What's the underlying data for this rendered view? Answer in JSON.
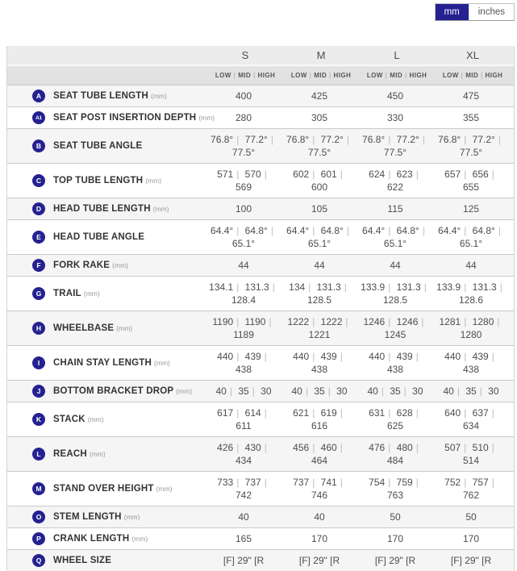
{
  "unit_toggle": {
    "mm_label": "mm",
    "inches_label": "inches",
    "active": "mm",
    "active_color": "#252191"
  },
  "table": {
    "sizes": [
      "S",
      "M",
      "L",
      "XL"
    ],
    "settings": [
      "LOW",
      "MID",
      "HIGH"
    ],
    "rows": [
      {
        "badge": "A",
        "label": "SEAT TUBE LENGTH",
        "unit": "(mm)",
        "values": [
          [
            "400"
          ],
          [
            "425"
          ],
          [
            "450"
          ],
          [
            "475"
          ]
        ]
      },
      {
        "badge": "A1",
        "label": "SEAT POST INSERTION DEPTH",
        "unit": "(mm)",
        "values": [
          [
            "280"
          ],
          [
            "305"
          ],
          [
            "330"
          ],
          [
            "355"
          ]
        ]
      },
      {
        "badge": "B",
        "label": "SEAT TUBE ANGLE",
        "unit": "",
        "values": [
          [
            "76.8°",
            "77.2°",
            "77.5°"
          ],
          [
            "76.8°",
            "77.2°",
            "77.5°"
          ],
          [
            "76.8°",
            "77.2°",
            "77.5°"
          ],
          [
            "76.8°",
            "77.2°",
            "77.5°"
          ]
        ]
      },
      {
        "badge": "C",
        "label": "TOP TUBE LENGTH",
        "unit": "(mm)",
        "values": [
          [
            "571",
            "570",
            "569"
          ],
          [
            "602",
            "601",
            "600"
          ],
          [
            "624",
            "623",
            "622"
          ],
          [
            "657",
            "656",
            "655"
          ]
        ]
      },
      {
        "badge": "D",
        "label": "HEAD TUBE LENGTH",
        "unit": "(mm)",
        "values": [
          [
            "100"
          ],
          [
            "105"
          ],
          [
            "115"
          ],
          [
            "125"
          ]
        ]
      },
      {
        "badge": "E",
        "label": "HEAD TUBE ANGLE",
        "unit": "",
        "values": [
          [
            "64.4°",
            "64.8°",
            "65.1°"
          ],
          [
            "64.4°",
            "64.8°",
            "65.1°"
          ],
          [
            "64.4°",
            "64.8°",
            "65.1°"
          ],
          [
            "64.4°",
            "64.8°",
            "65.1°"
          ]
        ]
      },
      {
        "badge": "F",
        "label": "FORK RAKE",
        "unit": "(mm)",
        "values": [
          [
            "44"
          ],
          [
            "44"
          ],
          [
            "44"
          ],
          [
            "44"
          ]
        ]
      },
      {
        "badge": "G",
        "label": "TRAIL",
        "unit": "(mm)",
        "values": [
          [
            "134.1",
            "131.3",
            "128.4"
          ],
          [
            "134",
            "131.3",
            "128.5"
          ],
          [
            "133.9",
            "131.3",
            "128.5"
          ],
          [
            "133.9",
            "131.3",
            "128.6"
          ]
        ]
      },
      {
        "badge": "H",
        "label": "WHEELBASE",
        "unit": "(mm)",
        "values": [
          [
            "1190",
            "1190",
            "1189"
          ],
          [
            "1222",
            "1222",
            "1221"
          ],
          [
            "1246",
            "1246",
            "1245"
          ],
          [
            "1281",
            "1280",
            "1280"
          ]
        ]
      },
      {
        "badge": "I",
        "label": "CHAIN STAY LENGTH",
        "unit": "(mm)",
        "values": [
          [
            "440",
            "439",
            "438"
          ],
          [
            "440",
            "439",
            "438"
          ],
          [
            "440",
            "439",
            "438"
          ],
          [
            "440",
            "439",
            "438"
          ]
        ]
      },
      {
        "badge": "J",
        "label": "BOTTOM BRACKET DROP",
        "unit": "(mm)",
        "values": [
          [
            "40",
            "35",
            "30"
          ],
          [
            "40",
            "35",
            "30"
          ],
          [
            "40",
            "35",
            "30"
          ],
          [
            "40",
            "35",
            "30"
          ]
        ]
      },
      {
        "badge": "K",
        "label": "STACK",
        "unit": "(mm)",
        "values": [
          [
            "617",
            "614",
            "611"
          ],
          [
            "621",
            "619",
            "616"
          ],
          [
            "631",
            "628",
            "625"
          ],
          [
            "640",
            "637",
            "634"
          ]
        ]
      },
      {
        "badge": "L",
        "label": "REACH",
        "unit": "(mm)",
        "values": [
          [
            "426",
            "430",
            "434"
          ],
          [
            "456",
            "460",
            "464"
          ],
          [
            "476",
            "480",
            "484"
          ],
          [
            "507",
            "510",
            "514"
          ]
        ]
      },
      {
        "badge": "M",
        "label": "STAND OVER HEIGHT",
        "unit": "(mm)",
        "values": [
          [
            "733",
            "737",
            "742"
          ],
          [
            "737",
            "741",
            "746"
          ],
          [
            "754",
            "759",
            "763"
          ],
          [
            "752",
            "757",
            "762"
          ]
        ]
      },
      {
        "badge": "O",
        "label": "STEM LENGTH",
        "unit": "(mm)",
        "values": [
          [
            "40"
          ],
          [
            "40"
          ],
          [
            "50"
          ],
          [
            "50"
          ]
        ]
      },
      {
        "badge": "P",
        "label": "CRANK LENGTH",
        "unit": "(mm)",
        "values": [
          [
            "165"
          ],
          [
            "170"
          ],
          [
            "170"
          ],
          [
            "170"
          ]
        ]
      },
      {
        "badge": "Q",
        "label": "WHEEL SIZE",
        "unit": "",
        "values": [
          [
            "[F] 29\" [R"
          ],
          [
            "[F] 29\" [R"
          ],
          [
            "[F] 29\" [R"
          ],
          [
            "[F] 29\" [R"
          ]
        ]
      }
    ]
  }
}
